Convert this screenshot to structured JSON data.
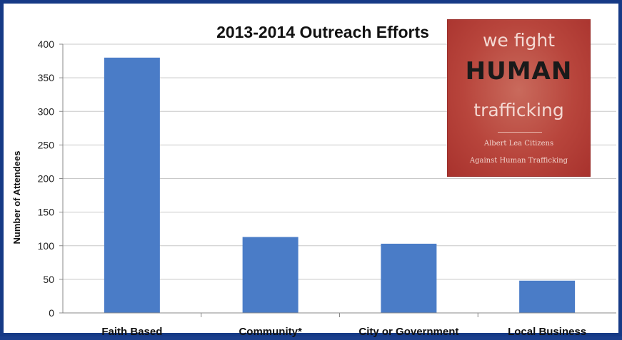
{
  "chart_data": {
    "type": "bar",
    "title": "2013-2014 Outreach Efforts",
    "xlabel": "",
    "ylabel": "Number of Attendees",
    "categories": [
      "Faith Based",
      "Community*",
      "City or Government",
      "Local Business"
    ],
    "values": [
      380,
      113,
      103,
      48
    ],
    "ylim": [
      0,
      400
    ],
    "yticks": [
      "0",
      "50",
      "100",
      "150",
      "200",
      "250",
      "300",
      "350",
      "400"
    ],
    "grid": true,
    "legend": "none",
    "bar_color": "#4a7cc7"
  },
  "logo": {
    "line1": "we fight",
    "line2": "HUMAN",
    "line3": "trafficking",
    "line4": "Albert Lea Citizens",
    "line5": "Against Human Trafficking"
  },
  "colors": {
    "frame_border": "#163a86",
    "bar": "#4a7cc7",
    "gridline": "#c8c8c8",
    "logo_background": "#b8453c"
  }
}
